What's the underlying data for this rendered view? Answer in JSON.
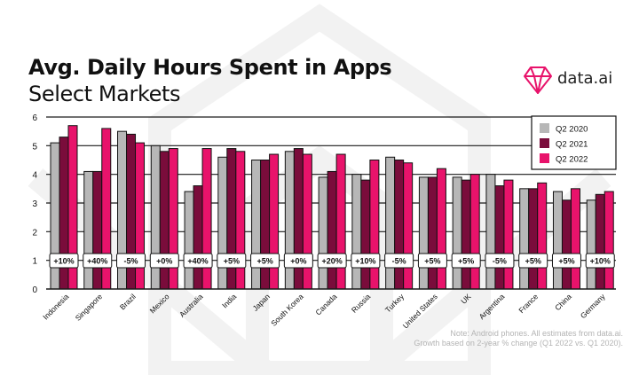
{
  "header": {
    "title": "Avg. Daily Hours Spent in Apps",
    "subtitle": "Select Markets"
  },
  "brand": {
    "name": "data.ai",
    "color": "#e8136b"
  },
  "note": {
    "line1": "Note: Android phones. All estimates from data.ai.",
    "line2": "Growth based on 2-year % change (Q1 2022 vs. Q1 2020)."
  },
  "chart_data": {
    "type": "bar",
    "title": "Avg. Daily Hours Spent in Apps",
    "subtitle": "Select Markets",
    "categories": [
      "Indonesia",
      "Singapore",
      "Brazil",
      "Mexico",
      "Australia",
      "India",
      "Japan",
      "South Korea",
      "Canada",
      "Russia",
      "Turkey",
      "United States",
      "UK",
      "Argentina",
      "France",
      "China",
      "Germany"
    ],
    "series": [
      {
        "name": "Q2 2020",
        "color": "#b7b7b7",
        "values": [
          5.1,
          4.1,
          5.5,
          5.0,
          3.4,
          4.6,
          4.5,
          4.8,
          3.9,
          4.0,
          4.6,
          3.9,
          3.9,
          4.0,
          3.5,
          3.4,
          3.1
        ]
      },
      {
        "name": "Q2 2021",
        "color": "#7a0c3b",
        "values": [
          5.3,
          4.1,
          5.4,
          4.8,
          3.6,
          4.9,
          4.5,
          4.9,
          4.1,
          3.8,
          4.5,
          3.9,
          3.8,
          3.6,
          3.5,
          3.1,
          3.3
        ]
      },
      {
        "name": "Q2 2022",
        "color": "#e8136b",
        "values": [
          5.7,
          5.6,
          5.1,
          4.9,
          4.9,
          4.8,
          4.7,
          4.7,
          4.7,
          4.5,
          4.4,
          4.2,
          4.0,
          3.8,
          3.7,
          3.5,
          3.4
        ]
      }
    ],
    "growth_labels": [
      "+10%",
      "+40%",
      "-5%",
      "+0%",
      "+40%",
      "+5%",
      "+5%",
      "+0%",
      "+20%",
      "+10%",
      "-5%",
      "+5%",
      "+5%",
      "-5%",
      "+5%",
      "+5%",
      "+10%"
    ],
    "yticks": [
      "0",
      "1",
      "2",
      "3",
      "4",
      "5",
      "6"
    ],
    "ylim": [
      0,
      6
    ],
    "legend_position": "top-right"
  }
}
